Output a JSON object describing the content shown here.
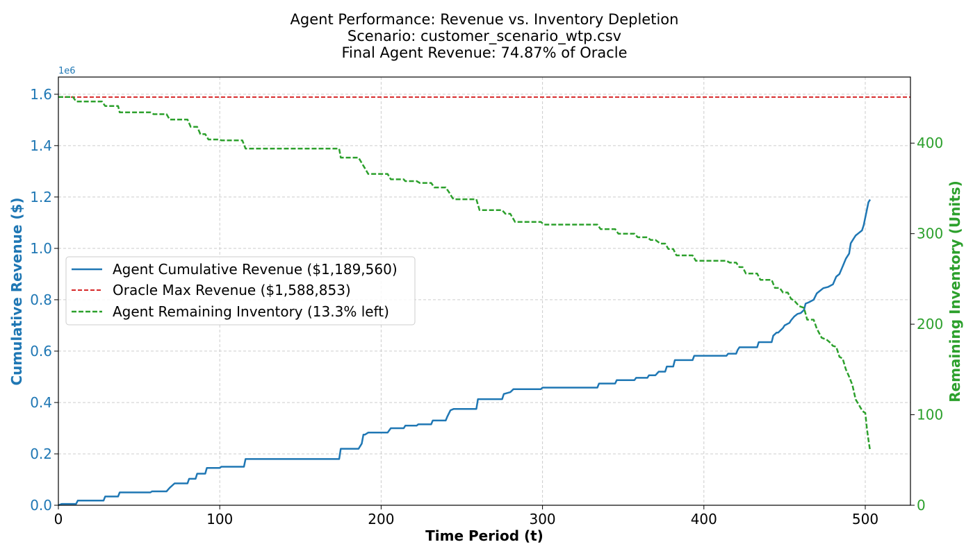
{
  "chart_data": {
    "type": "line",
    "title": [
      "Agent Performance: Revenue vs. Inventory Depletion",
      "Scenario: customer_scenario_wtp.csv",
      "Final Agent Revenue: 74.87% of Oracle"
    ],
    "xlabel": "Time Period (t)",
    "ylabel_left": "Cumulative Revenue ($)",
    "ylabel_right": "Remaining Inventory (Units)",
    "left_offset_label": "1e6",
    "xlim": [
      0,
      528
    ],
    "ylim_left": [
      0,
      1.667
    ],
    "ylim_right": [
      0,
      473
    ],
    "x_ticks": [
      0,
      100,
      200,
      300,
      400,
      500
    ],
    "x_tick_labels": [
      "0",
      "100",
      "200",
      "300",
      "400",
      "500"
    ],
    "y_left_ticks": [
      0,
      0.2,
      0.4,
      0.6,
      0.8,
      1.0,
      1.2,
      1.4,
      1.6
    ],
    "y_left_tick_labels": [
      "0.0",
      "0.2",
      "0.4",
      "0.6",
      "0.8",
      "1.0",
      "1.2",
      "1.4",
      "1.6"
    ],
    "y_right_ticks": [
      0,
      100,
      200,
      300,
      400
    ],
    "y_right_tick_labels": [
      "0",
      "100",
      "200",
      "300",
      "400"
    ],
    "grid": true,
    "legend_position": "center-left",
    "colors": {
      "revenue": "#1f77b4",
      "oracle": "#d62728",
      "inventory": "#2ca02c"
    },
    "series": [
      {
        "name": "Agent Cumulative Revenue ($1,189,560)",
        "axis": "left",
        "style": "solid",
        "color": "#1f77b4",
        "x": [
          0,
          2,
          3,
          11,
          12,
          28,
          29,
          37,
          38,
          57,
          58,
          67,
          69,
          72,
          80,
          81,
          85,
          86,
          91,
          92,
          100,
          101,
          115,
          116,
          174,
          175,
          186,
          188,
          189,
          190,
          192,
          193,
          204,
          206,
          214,
          215,
          222,
          223,
          231,
          232,
          240,
          241,
          243,
          245,
          259,
          260,
          275,
          276,
          280,
          282,
          283,
          299,
          300,
          334,
          335,
          345,
          346,
          357,
          358,
          365,
          366,
          370,
          372,
          376,
          377,
          381,
          382,
          393,
          394,
          414,
          415,
          420,
          421,
          422,
          424,
          433,
          434,
          442,
          443,
          445,
          446,
          449,
          450,
          453,
          454,
          456,
          458,
          460,
          462,
          463,
          465,
          468,
          470,
          472,
          474,
          477,
          480,
          482,
          484,
          486,
          488,
          490,
          491,
          492,
          493,
          494,
          496,
          498,
          499,
          500,
          501,
          502,
          503
        ],
        "values": [
          0.0,
          0.005,
          0.005,
          0.005,
          0.018,
          0.018,
          0.034,
          0.034,
          0.05,
          0.05,
          0.054,
          0.054,
          0.068,
          0.085,
          0.085,
          0.103,
          0.103,
          0.123,
          0.123,
          0.145,
          0.145,
          0.15,
          0.15,
          0.18,
          0.18,
          0.22,
          0.22,
          0.24,
          0.275,
          0.275,
          0.283,
          0.283,
          0.283,
          0.3,
          0.3,
          0.31,
          0.31,
          0.315,
          0.315,
          0.33,
          0.33,
          0.345,
          0.37,
          0.375,
          0.375,
          0.413,
          0.413,
          0.433,
          0.44,
          0.452,
          0.452,
          0.452,
          0.458,
          0.458,
          0.474,
          0.474,
          0.487,
          0.487,
          0.496,
          0.496,
          0.506,
          0.506,
          0.52,
          0.52,
          0.54,
          0.54,
          0.565,
          0.565,
          0.582,
          0.582,
          0.59,
          0.59,
          0.605,
          0.615,
          0.615,
          0.615,
          0.635,
          0.635,
          0.66,
          0.672,
          0.672,
          0.69,
          0.7,
          0.71,
          0.72,
          0.735,
          0.745,
          0.748,
          0.76,
          0.785,
          0.79,
          0.8,
          0.825,
          0.835,
          0.845,
          0.85,
          0.86,
          0.89,
          0.9,
          0.93,
          0.96,
          0.98,
          1.02,
          1.03,
          1.04,
          1.05,
          1.06,
          1.07,
          1.09,
          1.12,
          1.15,
          1.18,
          1.19
        ]
      },
      {
        "name": "Oracle Max Revenue ($1,588,853)",
        "axis": "left",
        "style": "dashed",
        "color": "#d62728",
        "x": [
          0,
          528
        ],
        "values": [
          1.589,
          1.589
        ]
      },
      {
        "name": "Agent Remaining Inventory (13.3% left)",
        "axis": "right",
        "style": "dashed",
        "color": "#2ca02c",
        "x": [
          0,
          9,
          11,
          27,
          29,
          37,
          38,
          57,
          59,
          67,
          69,
          80,
          82,
          86,
          88,
          91,
          93,
          100,
          101,
          114,
          116,
          174,
          175,
          186,
          188,
          190,
          192,
          204,
          206,
          214,
          215,
          222,
          224,
          231,
          233,
          240,
          242,
          244,
          245,
          259,
          261,
          275,
          277,
          280,
          283,
          299,
          301,
          334,
          336,
          345,
          347,
          357,
          359,
          365,
          367,
          370,
          373,
          376,
          378,
          381,
          383,
          393,
          395,
          414,
          416,
          420,
          422,
          424,
          426,
          433,
          435,
          442,
          444,
          447,
          449,
          452,
          454,
          456,
          459,
          462,
          464,
          468,
          470,
          473,
          476,
          478,
          480,
          482,
          484,
          486,
          488,
          490,
          492,
          494,
          496,
          498,
          499,
          500,
          501,
          502,
          503
        ],
        "values": [
          451,
          451,
          446,
          446,
          441,
          441,
          434,
          434,
          432,
          432,
          426,
          426,
          418,
          418,
          410,
          410,
          404,
          404,
          403,
          403,
          394,
          394,
          384,
          384,
          378,
          372,
          366,
          366,
          360,
          360,
          358,
          358,
          356,
          356,
          351,
          351,
          346,
          340,
          338,
          338,
          326,
          326,
          322,
          322,
          313,
          313,
          310,
          310,
          305,
          305,
          300,
          300,
          296,
          296,
          293,
          293,
          289,
          289,
          283,
          283,
          276,
          276,
          270,
          270,
          268,
          268,
          263,
          263,
          256,
          256,
          249,
          249,
          240,
          240,
          235,
          235,
          228,
          226,
          220,
          218,
          205,
          205,
          195,
          185,
          183,
          180,
          176,
          175,
          164,
          162,
          150,
          142,
          133,
          117,
          111,
          105,
          103,
          102,
          85,
          72,
          60
        ]
      }
    ]
  }
}
